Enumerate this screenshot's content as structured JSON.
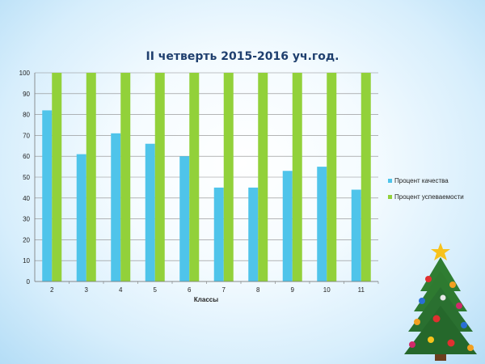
{
  "slide": {
    "decoration": "christmas-tree-icon"
  },
  "chart_data": {
    "type": "bar",
    "title": "II четверть 2015-2016 уч.год.",
    "xlabel": "Классы",
    "ylabel": "",
    "ylim": [
      0,
      100
    ],
    "yticks": [
      0,
      10,
      20,
      30,
      40,
      50,
      60,
      70,
      80,
      90,
      100
    ],
    "grid": true,
    "legend": "right",
    "categories": [
      "2",
      "3",
      "4",
      "5",
      "6",
      "7",
      "8",
      "9",
      "10",
      "11"
    ],
    "series": [
      {
        "name": "Процент  качества",
        "color": "#4fc4ea",
        "values": [
          82,
          61,
          71,
          66,
          60,
          45,
          45,
          53,
          55,
          44
        ]
      },
      {
        "name": "Процент  успеваемости",
        "color": "#92d13a",
        "values": [
          100,
          100,
          100,
          100,
          100,
          100,
          100,
          100,
          100,
          100
        ]
      }
    ]
  }
}
